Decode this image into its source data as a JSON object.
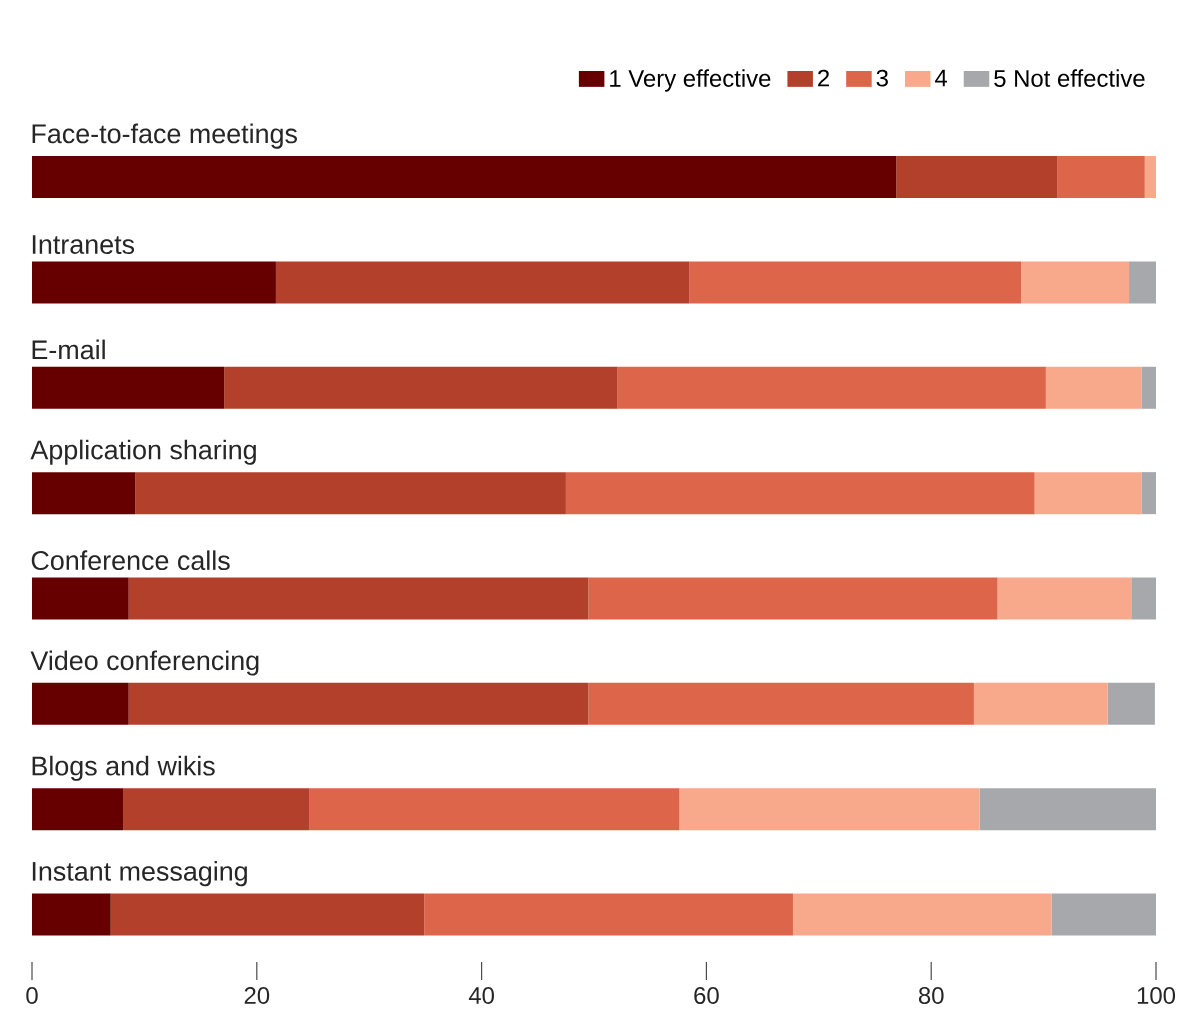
{
  "chart_data": {
    "type": "bar",
    "orientation": "horizontal",
    "stacked": true,
    "categories": [
      "Face-to-face meetings",
      "Intranets",
      "E-mail",
      "Application sharing",
      "Conference calls",
      "Video conferencing",
      "Blogs and wikis",
      "Instant messaging"
    ],
    "series": [
      {
        "name": "1 Very effective",
        "color": "#660000",
        "values": [
          76.9,
          21.7,
          17.1,
          9.2,
          8.6,
          8.6,
          8.1,
          7.0
        ]
      },
      {
        "name": "2",
        "color": "#b3402a",
        "values": [
          14.3,
          36.8,
          35.0,
          38.3,
          40.9,
          40.9,
          16.6,
          27.9
        ]
      },
      {
        "name": "3",
        "color": "#dd654a",
        "values": [
          7.8,
          29.5,
          38.1,
          41.7,
          36.4,
          34.3,
          32.9,
          32.8
        ]
      },
      {
        "name": "4",
        "color": "#f8a98b",
        "values": [
          1.0,
          9.6,
          8.5,
          9.5,
          11.9,
          11.9,
          26.7,
          23.0
        ]
      },
      {
        "name": "5 Not effective",
        "color": "#a7a8ac",
        "values": [
          0,
          2.4,
          1.3,
          1.3,
          2.2,
          4.2,
          15.7,
          9.3
        ]
      }
    ],
    "xlim": [
      0,
      100
    ],
    "xticks": [
      0,
      20,
      40,
      60,
      80,
      100
    ],
    "grid": false,
    "legend": "top right"
  }
}
